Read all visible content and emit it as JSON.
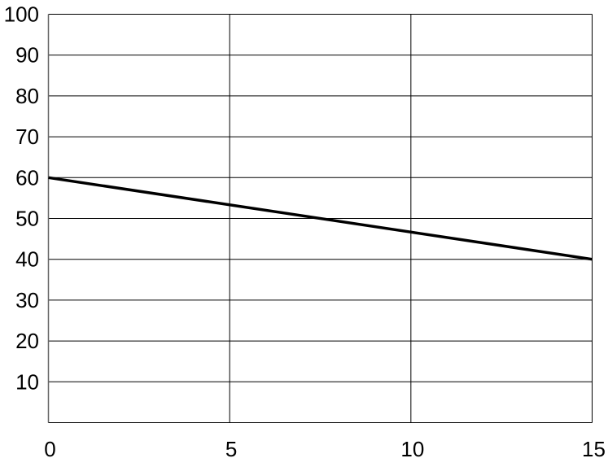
{
  "chart_data": {
    "type": "line",
    "title": "",
    "xlabel": "",
    "ylabel": "",
    "xlim": [
      0,
      15
    ],
    "ylim": [
      0,
      100
    ],
    "x_ticks": [
      0,
      5,
      10,
      15
    ],
    "y_ticks": [
      10,
      20,
      30,
      40,
      50,
      60,
      70,
      80,
      90,
      100
    ],
    "x_tick_labels": [
      "0",
      "5",
      "10",
      "15"
    ],
    "y_tick_labels": [
      "10",
      "20",
      "30",
      "40",
      "50",
      "60",
      "70",
      "80",
      "90",
      "100"
    ],
    "grid": true,
    "series": [
      {
        "x": [
          0,
          15
        ],
        "y": [
          60,
          40
        ],
        "color": "#000000"
      }
    ]
  }
}
